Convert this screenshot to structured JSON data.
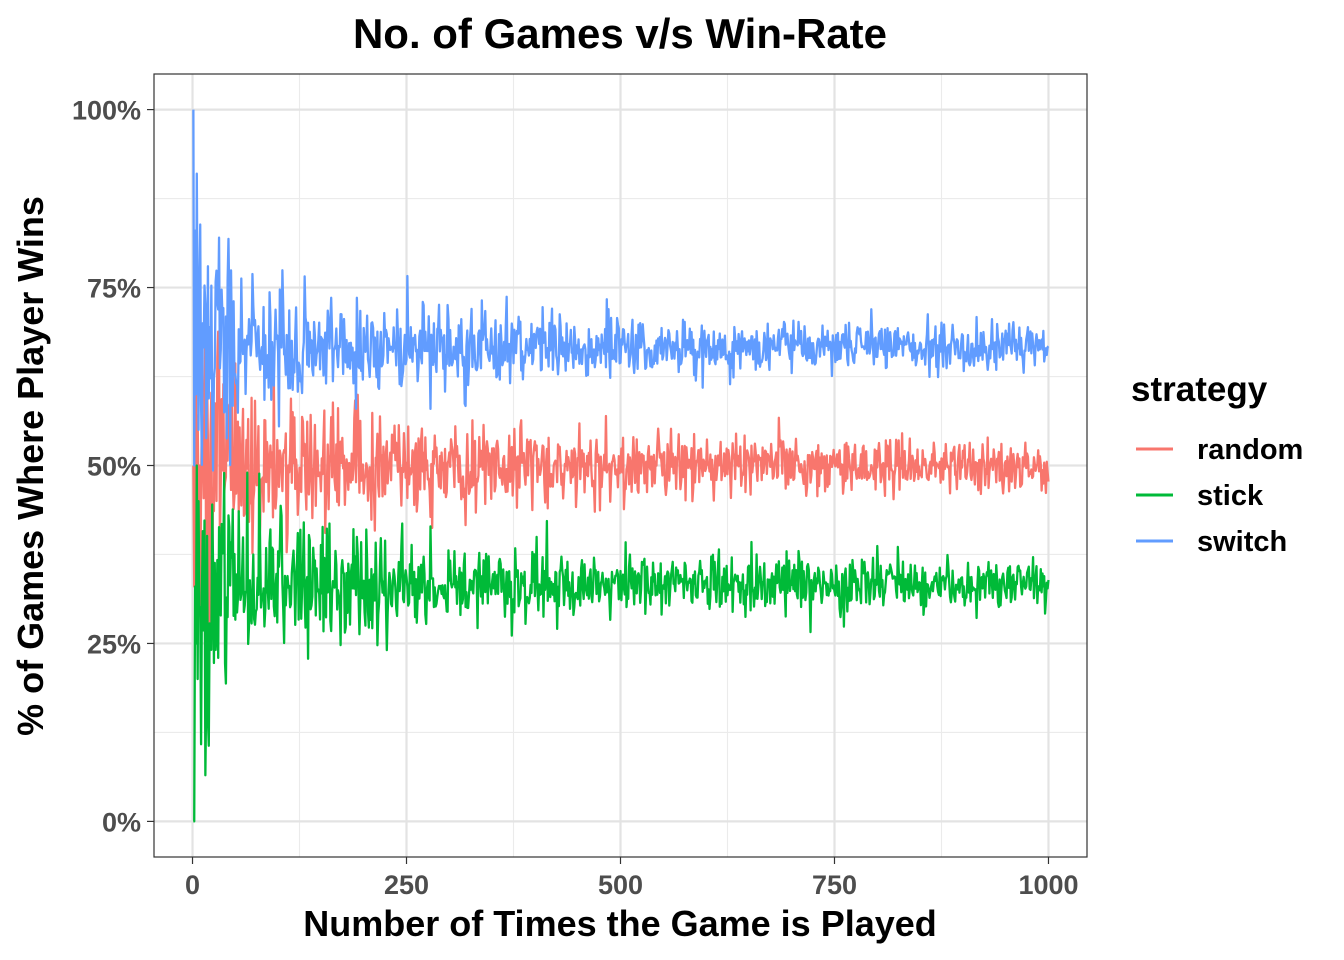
{
  "chart_data": {
    "type": "line",
    "title": "No. of Games v/s Win-Rate",
    "xlabel": "Number of Times the Game is Played",
    "ylabel": "% of Games Where Player Wins",
    "xlim": [
      -45,
      1045
    ],
    "ylim": [
      -0.05,
      1.05
    ],
    "x_ticks": [
      0,
      250,
      500,
      750,
      1000
    ],
    "x_tick_labels": [
      "0",
      "250",
      "500",
      "750",
      "1000"
    ],
    "y_ticks": [
      0,
      0.25,
      0.5,
      0.75,
      1.0
    ],
    "y_tick_labels": [
      "0%",
      "25%",
      "50%",
      "75%",
      "100%"
    ],
    "grid": true,
    "legend": {
      "title": "strategy",
      "position": "right"
    },
    "x_range": [
      1,
      1000
    ],
    "series": [
      {
        "name": "random",
        "color": "#F8766D",
        "expected": 0.5,
        "noise_scale": 0.55,
        "start_values": [
          0.5,
          0.33,
          0.6,
          0.67,
          0.4,
          0.57,
          0.45,
          0.5
        ]
      },
      {
        "name": "stick",
        "color": "#00BA38",
        "expected": 0.333,
        "noise_scale": 0.5,
        "start_values": [
          0,
          0,
          0.33,
          0.25,
          0.5,
          0.2,
          0.45,
          0.3
        ]
      },
      {
        "name": "switch",
        "color": "#619CFF",
        "expected": 0.667,
        "noise_scale": 0.5,
        "start_values": [
          1.0,
          0.5,
          0.83,
          0.6,
          0.91,
          0.7,
          0.55,
          0.75
        ]
      }
    ]
  }
}
